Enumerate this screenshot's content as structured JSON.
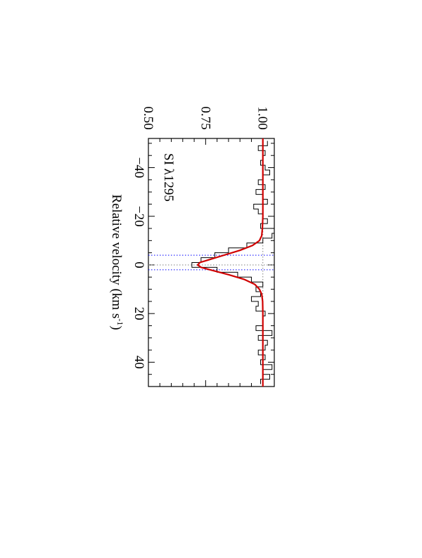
{
  "chart_data": {
    "type": "line",
    "orientation": "rotated-90-clockwise",
    "annotation": "SI λ1295",
    "xlabel": "Relative velocity (km s",
    "xlabel_sup": "-1",
    "xlabel_close": ")",
    "ylabel": "",
    "xlim": [
      -52,
      50
    ],
    "ylim": [
      0.5,
      1.05
    ],
    "x_ticks": [
      -40,
      -20,
      0,
      20,
      40
    ],
    "x_tick_labels": [
      "−40",
      "−20",
      "0",
      "20",
      "40"
    ],
    "y_ticks": [
      0.5,
      0.75,
      1.0
    ],
    "y_tick_labels": [
      "0.50",
      "0.75",
      "1.00"
    ],
    "component_lines": [
      -4,
      0,
      2
    ],
    "component_line_color": "#0000ff",
    "continuum_color": "#808080",
    "series": [
      {
        "style": "histogram",
        "color": "#000000",
        "x": [
          -50,
          -48,
          -46,
          -44,
          -42,
          -40,
          -38,
          -36,
          -34,
          -32,
          -30,
          -28,
          -26,
          -24,
          -22,
          -20,
          -18,
          -16,
          -14,
          -12,
          -10,
          -8,
          -6,
          -4,
          -2,
          0,
          2,
          4,
          6,
          8,
          10,
          12,
          14,
          16,
          18,
          20,
          22,
          24,
          26,
          28,
          30,
          32,
          34,
          36,
          38,
          40,
          42,
          44,
          46,
          48
        ],
        "y": [
          1.02,
          0.98,
          1.01,
          1.0,
          0.99,
          1.01,
          1.03,
          1.0,
          0.98,
          1.01,
          0.97,
          1.0,
          1.02,
          0.96,
          0.98,
          1.0,
          1.02,
          0.99,
          1.05,
          1.04,
          1.0,
          0.93,
          0.85,
          0.79,
          0.73,
          0.69,
          0.8,
          0.89,
          0.95,
          1.0,
          0.97,
          0.99,
          0.95,
          0.98,
          0.97,
          1.01,
          1.0,
          1.0,
          0.97,
          1.04,
          0.98,
          1.02,
          1.01,
          0.98,
          1.01,
          0.99,
          1.04,
          1.0,
          1.03,
          0.99
        ]
      },
      {
        "style": "line",
        "color": "#d00000",
        "x": [
          -52,
          -40,
          -30,
          -20,
          -15,
          -12,
          -10,
          -8,
          -6,
          -4,
          -2,
          -1,
          0,
          1,
          2,
          4,
          6,
          8,
          10,
          12,
          15,
          20,
          30,
          40,
          50
        ],
        "y": [
          1.0,
          1.0,
          1.0,
          1.0,
          0.998,
          0.995,
          0.985,
          0.955,
          0.9,
          0.83,
          0.76,
          0.725,
          0.715,
          0.73,
          0.77,
          0.85,
          0.92,
          0.965,
          0.985,
          0.995,
          0.999,
          1.0,
          1.0,
          1.0,
          1.0
        ]
      }
    ]
  }
}
